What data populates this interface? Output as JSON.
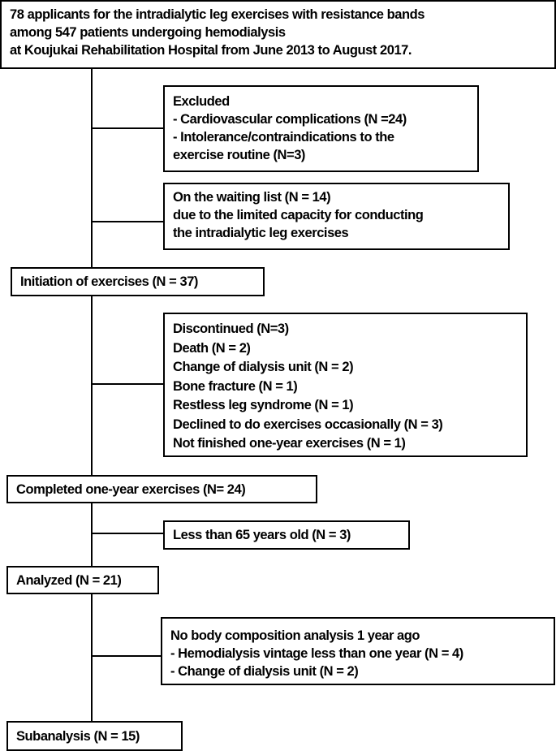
{
  "flowchart": {
    "enrollment": [
      "78 applicants for the intradialytic leg exercises with resistance bands",
      "among 547 patients undergoing hemodialysis",
      "at Koujukai  Rehabilitation Hospital from June 2013 to August 2017."
    ],
    "excluded": [
      "Excluded",
      "- Cardiovascular complications (N =24)",
      "- Intolerance/contraindications to the",
      "exercise routine (N=3)"
    ],
    "waiting": [
      "On the waiting list (N = 14)",
      "due to the limited capacity for  conducting",
      "the intradialytic leg exercises"
    ],
    "initiation": "Initiation of exercises (N = 37)",
    "discontinued": [
      "Discontinued (N=3)",
      "Death (N = 2)",
      "Change of dialysis unit (N = 2)",
      "Bone fracture (N = 1)",
      "Restless leg syndrome (N = 1)",
      "Declined to do exercises occasionally (N = 3)",
      "Not finished one-year exercises (N = 1)"
    ],
    "completed": "Completed one-year exercises (N= 24)",
    "age_excluded": "Less than 65 years old (N = 3)",
    "analyzed": "Analyzed (N = 21)",
    "no_body_comp": [
      "No body composition analysis 1 year ago",
      "- Hemodialysis vintage less than one year (N = 4)",
      "- Change of dialysis unit (N = 2)"
    ],
    "subanalysis": "Subanalysis (N = 15)"
  }
}
